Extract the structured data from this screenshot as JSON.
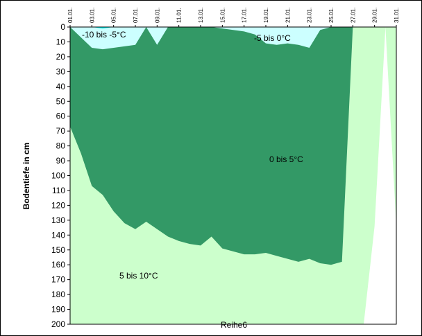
{
  "chart_data": {
    "type": "area",
    "title": "",
    "xlabel": "",
    "ylabel": "Bodentiefe in cm",
    "ylim": [
      0,
      200
    ],
    "y_inverted": true,
    "y_ticks": [
      0,
      10,
      20,
      30,
      40,
      50,
      60,
      70,
      80,
      90,
      100,
      110,
      120,
      130,
      140,
      150,
      160,
      170,
      180,
      190,
      200
    ],
    "x_ticks": [
      "01.01.",
      "03.01.",
      "05.01.",
      "07.01.",
      "09.01.",
      "11.01.",
      "13.01.",
      "15.01.",
      "17.01.",
      "19.01.",
      "21.01.",
      "23.01.",
      "25.01.",
      "27.01.",
      "29.01.",
      "31.01."
    ],
    "x": [
      1,
      2,
      3,
      4,
      5,
      6,
      7,
      8,
      9,
      10,
      11,
      12,
      13,
      14,
      15,
      16,
      17,
      18,
      19,
      20,
      21,
      22,
      23,
      24,
      25,
      26,
      27,
      28,
      29,
      30,
      31
    ],
    "series": [
      {
        "name": "-10 bis -5°C",
        "color": "#00ffff",
        "values": [
          0,
          0,
          0,
          1,
          0,
          0,
          0,
          0,
          0,
          0,
          0,
          0,
          0,
          0,
          0,
          0,
          0,
          0,
          0,
          0,
          0,
          0,
          0,
          0,
          0,
          0,
          0,
          0,
          0,
          0,
          0
        ]
      },
      {
        "name": "-5 bis 0°C",
        "color": "#ccffff",
        "values": [
          0,
          7,
          14,
          15,
          14,
          13,
          12,
          0,
          12,
          0,
          0,
          0,
          0,
          0,
          1,
          2,
          3,
          5,
          11,
          12,
          11,
          12,
          14,
          2,
          0,
          0,
          0,
          0,
          0,
          0,
          0
        ]
      },
      {
        "name": "0 bis 5°C",
        "color": "#339966",
        "values": [
          67,
          85,
          107,
          113,
          124,
          132,
          136,
          131,
          136,
          141,
          144,
          146,
          147,
          141,
          149,
          151,
          153,
          153,
          152,
          154,
          156,
          158,
          156,
          159,
          160,
          158,
          0,
          0,
          0,
          0,
          0
        ]
      },
      {
        "name": "5 bis 10°C",
        "color": "#ccffcc",
        "values": [
          200,
          200,
          200,
          200,
          200,
          200,
          200,
          200,
          200,
          200,
          200,
          200,
          200,
          200,
          200,
          200,
          200,
          200,
          200,
          200,
          200,
          200,
          200,
          200,
          200,
          200,
          200,
          200,
          134,
          0,
          134
        ]
      }
    ],
    "annotations": [
      "-10 bis -5°C",
      "-5 bis 0°C",
      "0 bis 5°C",
      "5 bis 10°C"
    ],
    "bottom_label": "Reihe6",
    "grid": false,
    "legend": "none"
  }
}
